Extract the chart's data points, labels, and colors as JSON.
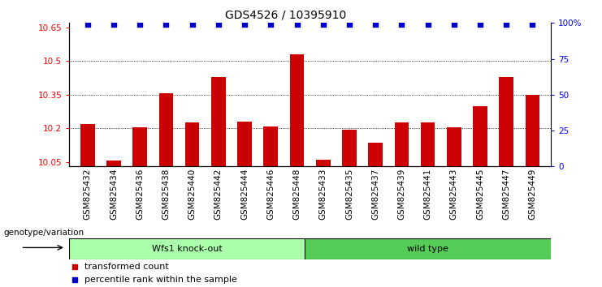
{
  "title": "GDS4526 / 10395910",
  "categories": [
    "GSM825432",
    "GSM825434",
    "GSM825436",
    "GSM825438",
    "GSM825440",
    "GSM825442",
    "GSM825444",
    "GSM825446",
    "GSM825448",
    "GSM825433",
    "GSM825435",
    "GSM825437",
    "GSM825439",
    "GSM825441",
    "GSM825443",
    "GSM825445",
    "GSM825447",
    "GSM825449"
  ],
  "bar_values": [
    10.22,
    10.055,
    10.205,
    10.355,
    10.225,
    10.43,
    10.23,
    10.21,
    10.53,
    10.06,
    10.195,
    10.135,
    10.225,
    10.225,
    10.205,
    10.3,
    10.43,
    10.35
  ],
  "percentile_values": [
    99,
    99,
    99,
    99,
    99,
    99,
    99,
    99,
    99,
    99,
    99,
    99,
    99,
    99,
    99,
    99,
    99,
    99
  ],
  "bar_color": "#cc0000",
  "percentile_color": "#0000cc",
  "ylim_left": [
    10.03,
    10.67
  ],
  "ylim_right": [
    0,
    100
  ],
  "yticks_left": [
    10.05,
    10.2,
    10.35,
    10.5,
    10.65
  ],
  "yticks_right": [
    0,
    25,
    50,
    75,
    100
  ],
  "ytick_right_labels": [
    "0",
    "25",
    "50",
    "75",
    "100%"
  ],
  "grid_lines": [
    10.2,
    10.35,
    10.5
  ],
  "group1_label": "Wfs1 knock-out",
  "group2_label": "wild type",
  "group1_count": 9,
  "group2_count": 9,
  "group1_color": "#aaffaa",
  "group2_color": "#55cc55",
  "xlabel_left": "genotype/variation",
  "legend_items": [
    "transformed count",
    "percentile rank within the sample"
  ],
  "background_color": "#ffffff",
  "title_fontsize": 10,
  "tick_fontsize": 7.5,
  "label_fontsize": 8
}
